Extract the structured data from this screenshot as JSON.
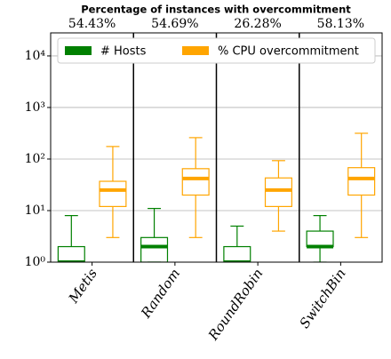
{
  "chart_data": {
    "type": "box",
    "title": "Percentage of instances with overcommitment",
    "categories": [
      "Metis",
      "Random",
      "RoundRobin",
      "SwitchBin"
    ],
    "top_labels": {
      "values": [
        54.43,
        54.69,
        26.28,
        58.13
      ],
      "value_labels": [
        "54.43%",
        "54.69%",
        "26.28%",
        "58.13%"
      ]
    },
    "series": [
      {
        "name": "# Hosts",
        "color": "#008000",
        "low": [
          1,
          1,
          1,
          1
        ],
        "q1": [
          1,
          1,
          1,
          2
        ],
        "median": [
          1,
          2,
          1,
          2
        ],
        "q3": [
          2,
          3,
          2,
          4
        ],
        "high": [
          8,
          11,
          5,
          8
        ]
      },
      {
        "name": "% CPU overcommitment",
        "color": "#ffa500",
        "low": [
          3,
          3,
          4,
          3
        ],
        "q1": [
          12,
          20,
          12,
          20
        ],
        "median": [
          25,
          42,
          25,
          42
        ],
        "q3": [
          37,
          65,
          43,
          68
        ],
        "high": [
          175,
          260,
          93,
          316
        ]
      }
    ],
    "ylim": [
      1,
      28000
    ],
    "log_y": true,
    "grid": true,
    "legend": "top",
    "yticks": [
      {
        "value": 1,
        "label": "10⁰"
      },
      {
        "value": 10,
        "label": "10¹"
      },
      {
        "value": 100,
        "label": "10²"
      },
      {
        "value": 1000,
        "label": "10³"
      },
      {
        "value": 10000,
        "label": "10⁴"
      }
    ]
  }
}
